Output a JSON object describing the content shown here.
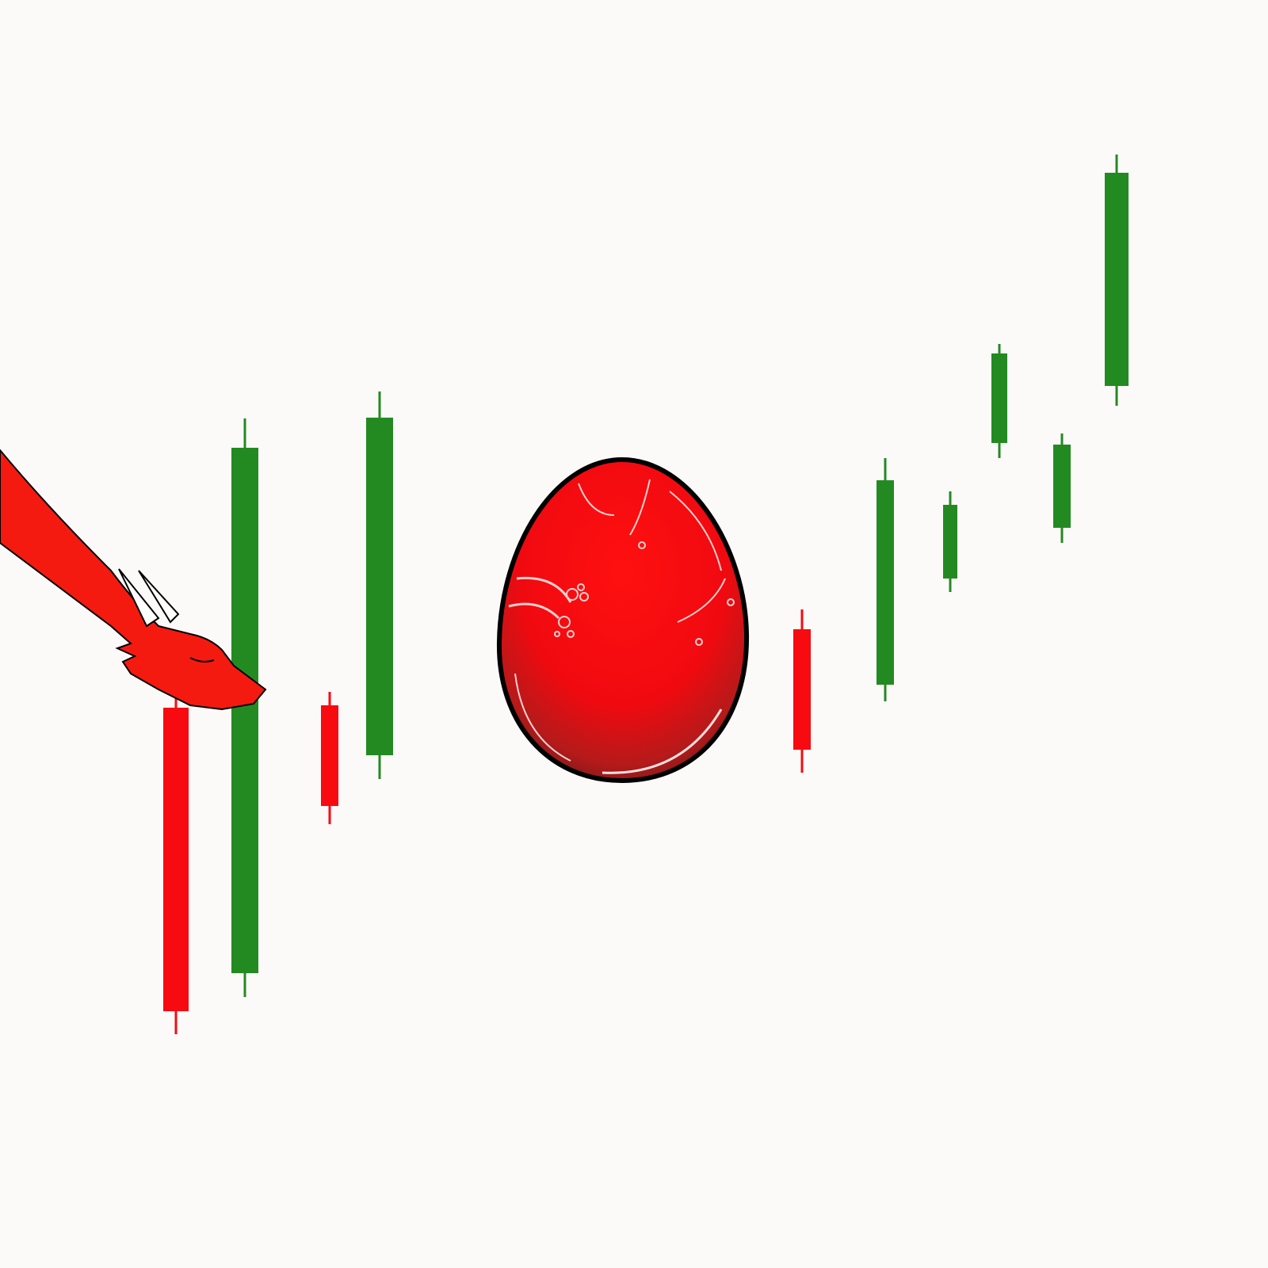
{
  "chart_data": {
    "type": "candlestick",
    "open": [
      707,
      372,
      710,
      647,
      806,
      736,
      870,
      1041,
      934,
      1113
    ],
    "high": [
      742,
      1072,
      727,
      1106,
      831,
      1022,
      980,
      1166,
      1053,
      1405
    ],
    "low": [
      295,
      342,
      560,
      617,
      625,
      715,
      853,
      1022,
      915,
      1088
    ],
    "close": [
      324,
      1035,
      583,
      1073,
      654,
      994,
      963,
      1154,
      1039,
      1382
    ],
    "up_color": "#238a22",
    "down_color": "#f70a10",
    "ylim": [
      0,
      1600
    ]
  }
}
